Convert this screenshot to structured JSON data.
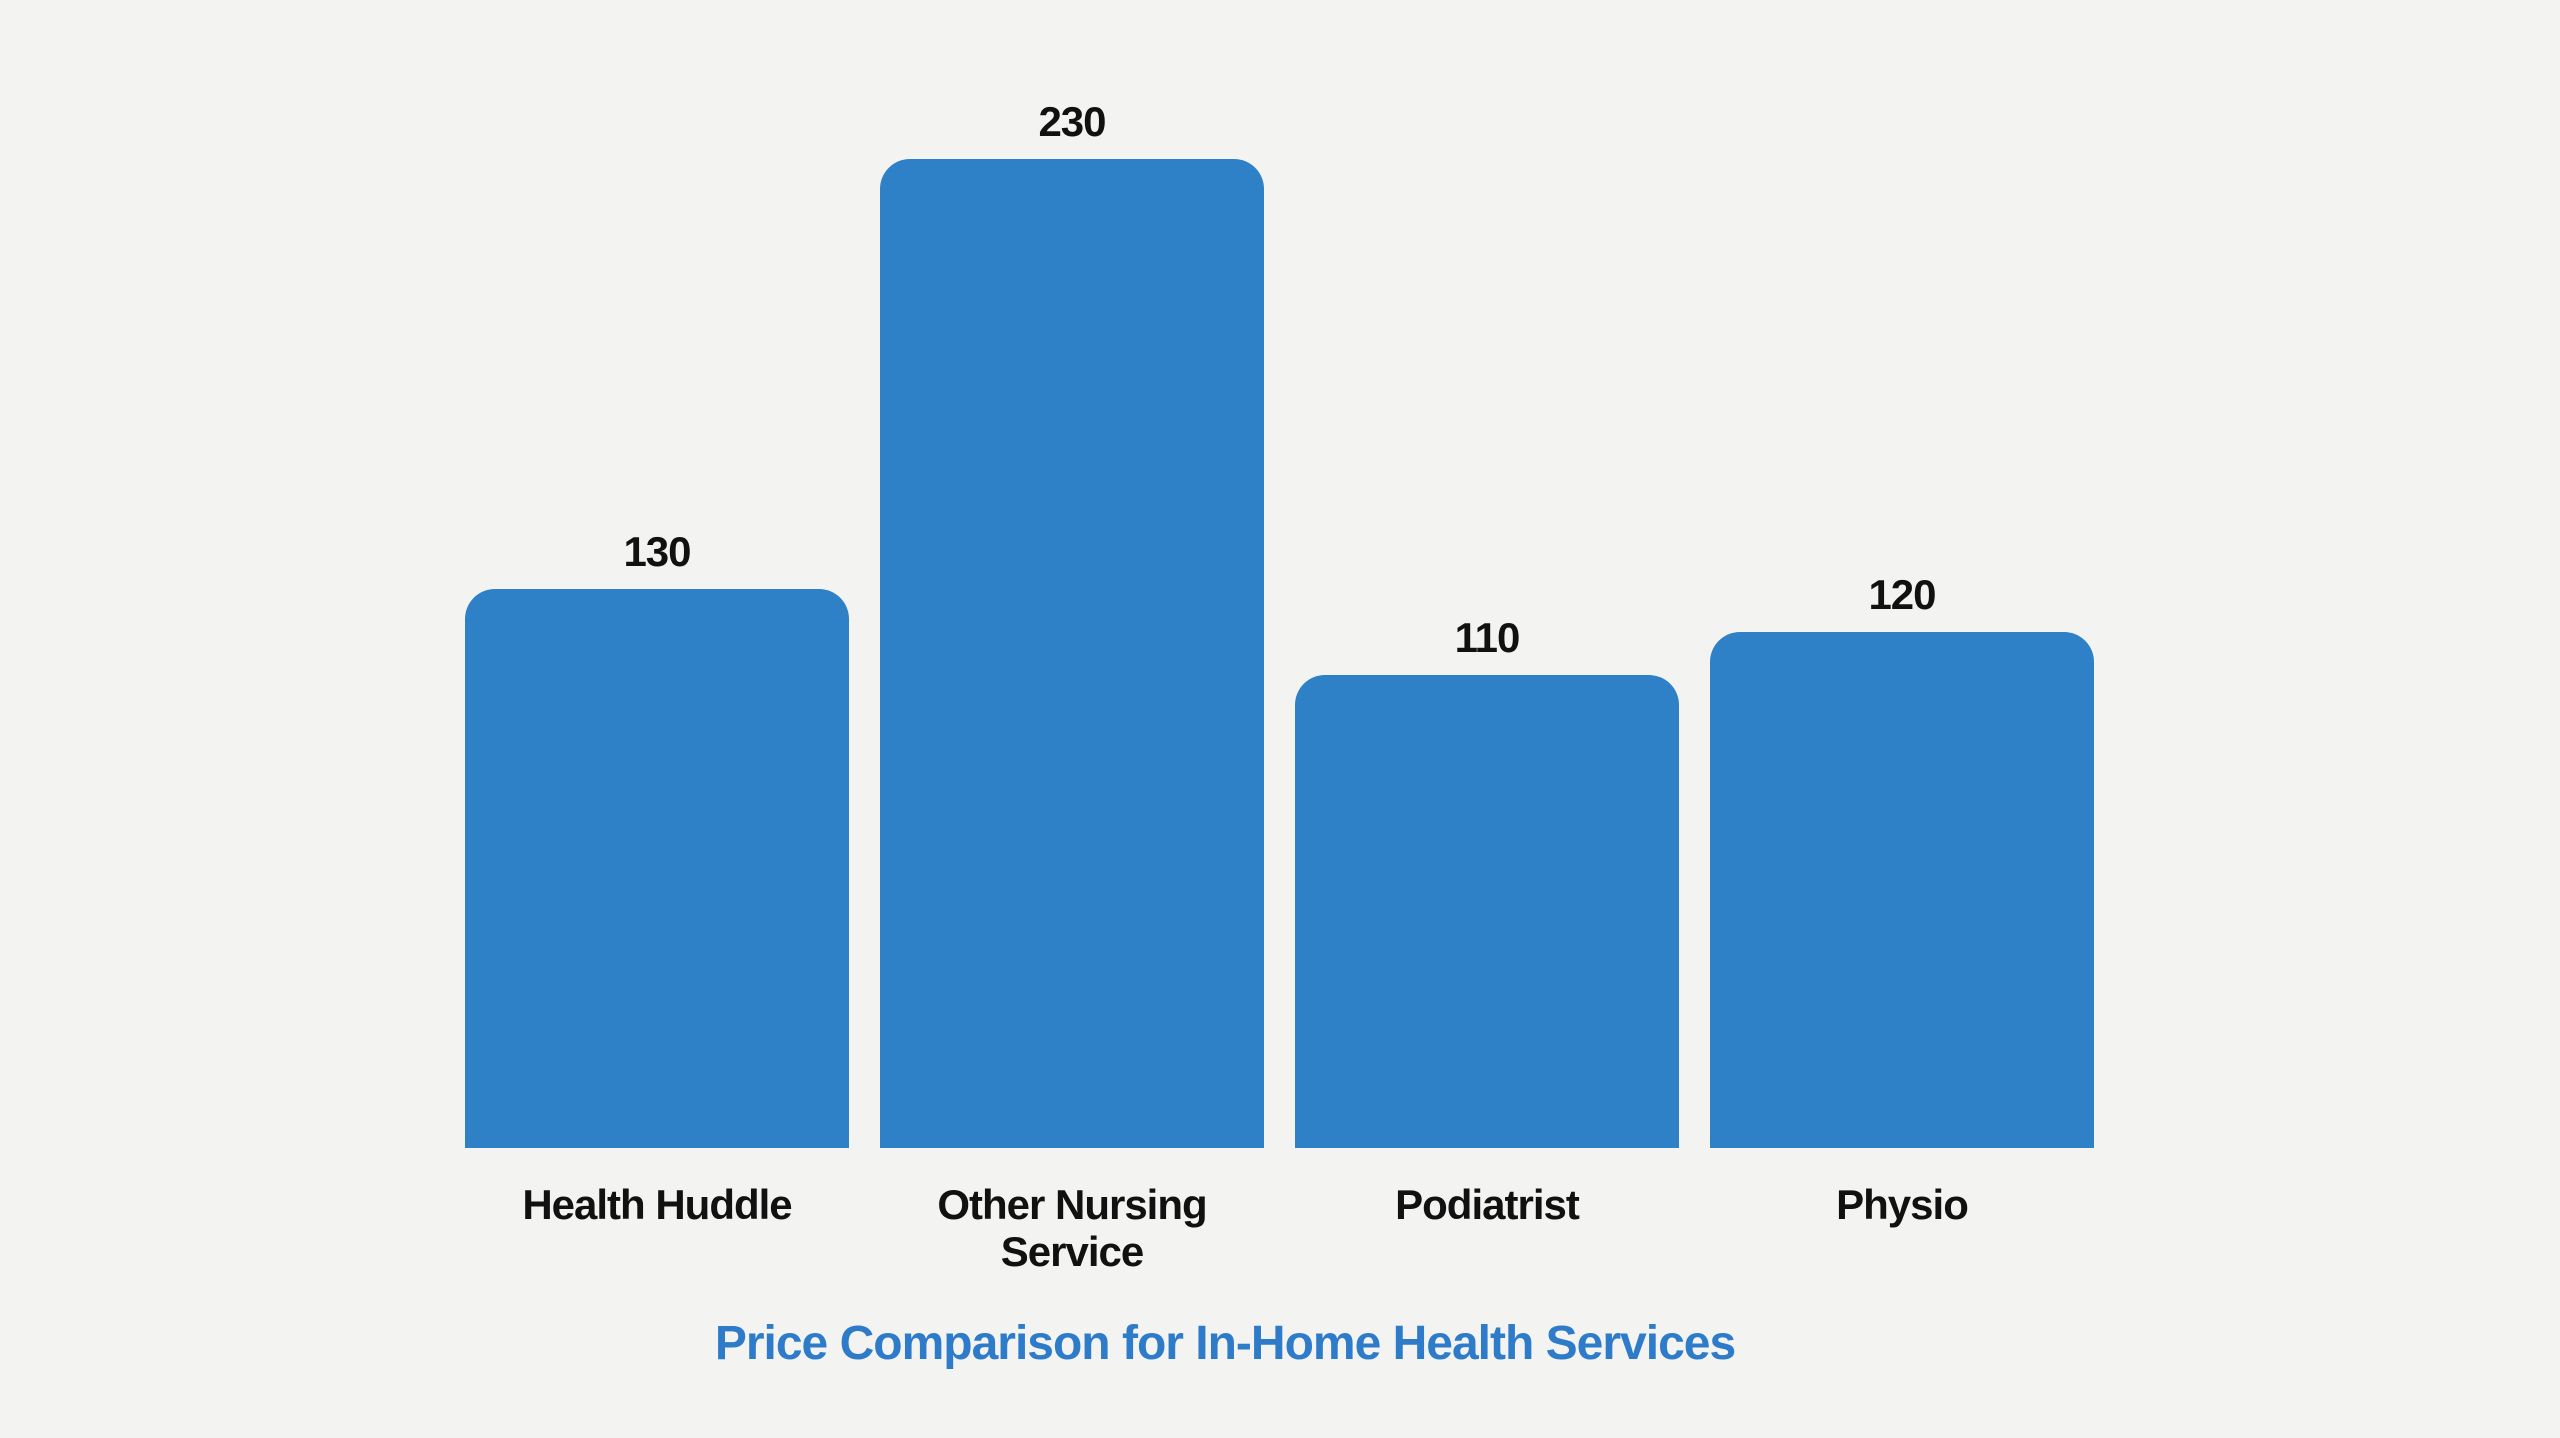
{
  "page": {
    "background_color": "#f3f3f1"
  },
  "chart_data": {
    "type": "bar",
    "title": "Price Comparison for In-Home Health Services",
    "xlabel": "",
    "ylabel": "",
    "categories": [
      "Health Huddle",
      "Other Nursing Service",
      "Podiatrist",
      "Physio"
    ],
    "values": [
      130,
      230,
      110,
      120
    ],
    "value_labels": [
      "130",
      "230",
      "110",
      "120"
    ],
    "ylim": [
      0,
      240
    ],
    "grid": false,
    "legend": "none",
    "axes_shown": false,
    "orientation": "vertical",
    "bar_color": "#2e80c7",
    "title_color": "#2e7cc9",
    "label_color": "#111111",
    "title_position": "bottom"
  }
}
